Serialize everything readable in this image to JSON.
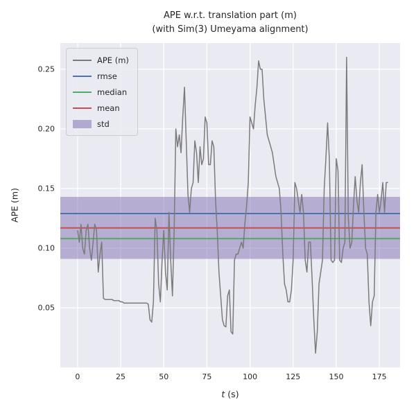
{
  "title": {
    "line1": "APE w.r.t. translation part (m)",
    "line2": "(with Sim(3) Umeyama alignment)"
  },
  "axes": {
    "ylabel": "APE (m)",
    "xlabel_var": "t",
    "xlabel_rest": " (s)"
  },
  "legend": {
    "position": "upper left",
    "items": [
      {
        "label": "APE (m)",
        "key": "ape",
        "type": "line"
      },
      {
        "label": "rmse",
        "key": "rmse",
        "type": "line"
      },
      {
        "label": "median",
        "key": "median",
        "type": "line"
      },
      {
        "label": "mean",
        "key": "mean",
        "type": "line"
      },
      {
        "label": "std",
        "key": "std",
        "type": "band"
      }
    ]
  },
  "chart_data": {
    "type": "line",
    "title": "APE w.r.t. translation part (m) (with Sim(3) Umeyama alignment)",
    "xlabel": "t (s)",
    "ylabel": "APE (m)",
    "xlim": [
      -10,
      187
    ],
    "ylim": [
      0,
      0.272
    ],
    "xticks": [
      0,
      25,
      50,
      75,
      100,
      125,
      150,
      175
    ],
    "xticklabels": [
      "0",
      "25",
      "50",
      "75",
      "100",
      "125",
      "150",
      "175"
    ],
    "yticks": [
      0.05,
      0.1,
      0.15,
      0.2,
      0.25
    ],
    "yticklabels": [
      "0.05",
      "0.10",
      "0.15",
      "0.20",
      "0.25"
    ],
    "grid": true,
    "background": "#eaeaf2",
    "grid_color": "#ffffff",
    "stats": {
      "rmse": 0.129,
      "mean": 0.117,
      "median": 0.108,
      "std": 0.026
    },
    "colors": {
      "ape": "#7a7a7a",
      "rmse": "#4c72b0",
      "median": "#55a868",
      "mean": "#c44e52",
      "std": "#8172b2"
    },
    "series": {
      "name": "APE (m)",
      "t": [
        0,
        1,
        2,
        3,
        4,
        5,
        6,
        7,
        8,
        9,
        10,
        11,
        12,
        13,
        14,
        15,
        16,
        17,
        18,
        19,
        20,
        21,
        22,
        23,
        24,
        25,
        26,
        27,
        28,
        29,
        30,
        31,
        32,
        33,
        34,
        35,
        36,
        37,
        38,
        39,
        40,
        41,
        42,
        43,
        44,
        45,
        46,
        47,
        48,
        49,
        50,
        51,
        52,
        53,
        54,
        55,
        56,
        57,
        58,
        59,
        60,
        61,
        62,
        63,
        64,
        65,
        66,
        67,
        68,
        69,
        70,
        71,
        72,
        73,
        74,
        75,
        76,
        77,
        78,
        79,
        80,
        81,
        82,
        83,
        84,
        85,
        86,
        87,
        88,
        89,
        90,
        91,
        92,
        93,
        94,
        95,
        96,
        97,
        98,
        99,
        100,
        101,
        102,
        103,
        104,
        105,
        106,
        107,
        108,
        109,
        110,
        111,
        112,
        113,
        114,
        115,
        116,
        117,
        118,
        119,
        120,
        121,
        122,
        123,
        124,
        125,
        126,
        127,
        128,
        129,
        130,
        131,
        132,
        133,
        134,
        135,
        136,
        137,
        138,
        139,
        140,
        141,
        142,
        143,
        144,
        145,
        146,
        147,
        148,
        149,
        150,
        151,
        152,
        153,
        154,
        155,
        156,
        157,
        158,
        159,
        160,
        161,
        162,
        163,
        164,
        165,
        166,
        167,
        168,
        169,
        170,
        171,
        172,
        173,
        174,
        175,
        176,
        177,
        178,
        179,
        180
      ],
      "values": [
        0.115,
        0.105,
        0.12,
        0.1,
        0.095,
        0.115,
        0.12,
        0.1,
        0.09,
        0.105,
        0.12,
        0.115,
        0.08,
        0.095,
        0.105,
        0.058,
        0.057,
        0.057,
        0.057,
        0.057,
        0.057,
        0.056,
        0.056,
        0.056,
        0.056,
        0.055,
        0.055,
        0.054,
        0.054,
        0.054,
        0.054,
        0.054,
        0.054,
        0.054,
        0.054,
        0.054,
        0.054,
        0.054,
        0.054,
        0.054,
        0.054,
        0.053,
        0.04,
        0.038,
        0.055,
        0.125,
        0.115,
        0.07,
        0.055,
        0.09,
        0.115,
        0.08,
        0.065,
        0.13,
        0.09,
        0.06,
        0.115,
        0.2,
        0.185,
        0.195,
        0.18,
        0.21,
        0.235,
        0.19,
        0.145,
        0.13,
        0.15,
        0.155,
        0.19,
        0.18,
        0.155,
        0.185,
        0.17,
        0.175,
        0.21,
        0.205,
        0.17,
        0.17,
        0.19,
        0.185,
        0.14,
        0.115,
        0.08,
        0.06,
        0.04,
        0.035,
        0.034,
        0.06,
        0.065,
        0.03,
        0.028,
        0.09,
        0.095,
        0.095,
        0.1,
        0.105,
        0.1,
        0.12,
        0.135,
        0.155,
        0.21,
        0.205,
        0.2,
        0.22,
        0.235,
        0.257,
        0.25,
        0.25,
        0.225,
        0.21,
        0.195,
        0.19,
        0.185,
        0.18,
        0.17,
        0.16,
        0.155,
        0.15,
        0.13,
        0.095,
        0.07,
        0.065,
        0.055,
        0.055,
        0.065,
        0.09,
        0.155,
        0.15,
        0.14,
        0.13,
        0.145,
        0.13,
        0.09,
        0.08,
        0.105,
        0.105,
        0.075,
        0.04,
        0.012,
        0.03,
        0.07,
        0.08,
        0.09,
        0.15,
        0.175,
        0.205,
        0.175,
        0.09,
        0.088,
        0.09,
        0.175,
        0.165,
        0.09,
        0.088,
        0.1,
        0.105,
        0.26,
        0.125,
        0.1,
        0.105,
        0.135,
        0.16,
        0.14,
        0.13,
        0.155,
        0.17,
        0.13,
        0.1,
        0.095,
        0.055,
        0.035,
        0.055,
        0.06,
        0.13,
        0.145,
        0.13,
        0.14,
        0.155,
        0.13,
        0.155,
        0.155
      ]
    }
  }
}
